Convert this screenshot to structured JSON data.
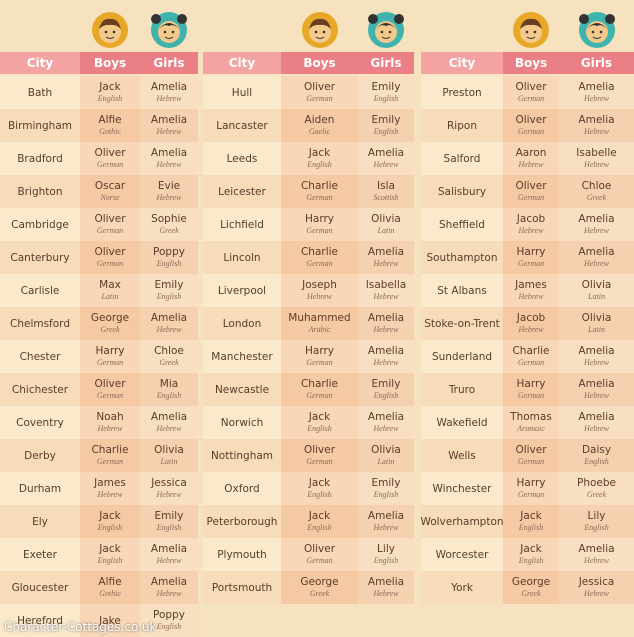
{
  "tables": [
    {
      "header": [
        "City",
        "Boys",
        "Girls"
      ],
      "rows": [
        {
          "city": "Bath",
          "boy": "Jack",
          "boy_origin": "English",
          "girl": "Amelia",
          "girl_origin": "Hebrew"
        },
        {
          "city": "Birmingham",
          "boy": "Alfie",
          "boy_origin": "Gothic",
          "girl": "Amelia",
          "girl_origin": "Hebrew"
        },
        {
          "city": "Bradford",
          "boy": "Oliver",
          "boy_origin": "German",
          "girl": "Amelia",
          "girl_origin": "Hebrew"
        },
        {
          "city": "Brighton",
          "boy": "Oscar",
          "boy_origin": "Norse",
          "girl": "Evie",
          "girl_origin": "Hebrew"
        },
        {
          "city": "Cambridge",
          "boy": "Oliver",
          "boy_origin": "German",
          "girl": "Sophie",
          "girl_origin": "Greek"
        },
        {
          "city": "Canterbury",
          "boy": "Oliver",
          "boy_origin": "German",
          "girl": "Poppy",
          "girl_origin": "English"
        },
        {
          "city": "Carlisle",
          "boy": "Max",
          "boy_origin": "Latin",
          "girl": "Emily",
          "girl_origin": "English"
        },
        {
          "city": "Chelmsford",
          "boy": "George",
          "boy_origin": "Greek",
          "girl": "Amelia",
          "girl_origin": "Hebrew"
        },
        {
          "city": "Chester",
          "boy": "Harry",
          "boy_origin": "German",
          "girl": "Chloe",
          "girl_origin": "Greek"
        },
        {
          "city": "Chichester",
          "boy": "Oliver",
          "boy_origin": "German",
          "girl": "Mia",
          "girl_origin": "English"
        },
        {
          "city": "Coventry",
          "boy": "Noah",
          "boy_origin": "Hebrew",
          "girl": "Amelia",
          "girl_origin": "Hebrew"
        },
        {
          "city": "Derby",
          "boy": "Charlie",
          "boy_origin": "German",
          "girl": "Olivia",
          "girl_origin": "Latin"
        },
        {
          "city": "Durham",
          "boy": "James",
          "boy_origin": "Hebrew",
          "girl": "Jessica",
          "girl_origin": "Hebrew"
        },
        {
          "city": "Ely",
          "boy": "Jack",
          "boy_origin": "English",
          "girl": "Emily",
          "girl_origin": "English"
        },
        {
          "city": "Exeter",
          "boy": "Jack",
          "boy_origin": "English",
          "girl": "Amelia",
          "girl_origin": "Hebrew"
        },
        {
          "city": "Gloucester",
          "boy": "Alfie",
          "boy_origin": "Gothic",
          "girl": "Amelia",
          "girl_origin": "Hebrew"
        },
        {
          "city": "Hereford",
          "boy": "Jake",
          "boy_origin": null,
          "girl": "Poppy",
          "girl_origin": "English"
        }
      ]
    },
    {
      "header": [
        "City",
        "Boys",
        "Girls"
      ],
      "rows": [
        {
          "city": "Hull",
          "boy": "Oliver",
          "boy_origin": "German",
          "girl": "Emily",
          "girl_origin": "English"
        },
        {
          "city": "Lancaster",
          "boy": "Aiden",
          "boy_origin": "Gaelic",
          "girl": "Emily",
          "girl_origin": "English"
        },
        {
          "city": "Leeds",
          "boy": "Jack",
          "boy_origin": "English",
          "girl": "Amelia",
          "girl_origin": "Hebrew"
        },
        {
          "city": "Leicester",
          "boy": "Charlie",
          "boy_origin": "German",
          "girl": "Isla",
          "girl_origin": "Scottish"
        },
        {
          "city": "Lichfield",
          "boy": "Harry",
          "boy_origin": "German",
          "girl": "Olivia",
          "girl_origin": "Latin"
        },
        {
          "city": "Lincoln",
          "boy": "Charlie",
          "boy_origin": "German",
          "girl": "Amelia",
          "girl_origin": "Hebrew"
        },
        {
          "city": "Liverpool",
          "boy": "Joseph",
          "boy_origin": "Hebrew",
          "girl": "Isabella",
          "girl_origin": "Hebrew"
        },
        {
          "city": "London",
          "boy": "Muhammed",
          "boy_origin": "Arabic",
          "girl": "Amelia",
          "girl_origin": "Hebrew"
        },
        {
          "city": "Manchester",
          "boy": "Harry",
          "boy_origin": "German",
          "girl": "Amelia",
          "girl_origin": "Hebrew"
        },
        {
          "city": "Newcastle",
          "boy": "Charlie",
          "boy_origin": "German",
          "girl": "Emily",
          "girl_origin": "English"
        },
        {
          "city": "Norwich",
          "boy": "Jack",
          "boy_origin": "English",
          "girl": "Amelia",
          "girl_origin": "Hebrew"
        },
        {
          "city": "Nottingham",
          "boy": "Oliver",
          "boy_origin": "German",
          "girl": "Olivia",
          "girl_origin": "Latin"
        },
        {
          "city": "Oxford",
          "boy": "Jack",
          "boy_origin": "English",
          "girl": "Emily",
          "girl_origin": "English"
        },
        {
          "city": "Peterborough",
          "boy": "Jack",
          "boy_origin": "English",
          "girl": "Amelia",
          "girl_origin": "Hebrew"
        },
        {
          "city": "Plymouth",
          "boy": "Oliver",
          "boy_origin": "German",
          "girl": "Lily",
          "girl_origin": "English"
        },
        {
          "city": "Portsmouth",
          "boy": "George",
          "boy_origin": "Greek",
          "girl": "Amelia",
          "girl_origin": "Hebrew"
        }
      ]
    },
    {
      "header": [
        "City",
        "Boys",
        "Girls"
      ],
      "rows": [
        {
          "city": "Preston",
          "boy": "Oliver",
          "boy_origin": "German",
          "girl": "Amelia",
          "girl_origin": "Hebrew"
        },
        {
          "city": "Ripon",
          "boy": "Oliver",
          "boy_origin": "German",
          "girl": "Amelia",
          "girl_origin": "Hebrew"
        },
        {
          "city": "Salford",
          "boy": "Aaron",
          "boy_origin": "Hebrew",
          "girl": "Isabelle",
          "girl_origin": "Hebrew"
        },
        {
          "city": "Salisbury",
          "boy": "Oliver",
          "boy_origin": "German",
          "girl": "Chloe",
          "girl_origin": "Greek"
        },
        {
          "city": "Sheffield",
          "boy": "Jacob",
          "boy_origin": "Hebrew",
          "girl": "Amelia",
          "girl_origin": "Hebrew"
        },
        {
          "city": "Southampton",
          "boy": "Harry",
          "boy_origin": "German",
          "girl": "Amelia",
          "girl_origin": "Hebrew"
        },
        {
          "city": "St Albans",
          "boy": "James",
          "boy_origin": "Hebrew",
          "girl": "Olivia",
          "girl_origin": "Latin"
        },
        {
          "city": "Stoke-on-Trent",
          "boy": "Jacob",
          "boy_origin": "Hebrew",
          "girl": "Olivia",
          "girl_origin": "Latin"
        },
        {
          "city": "Sunderland",
          "boy": "Charlie",
          "boy_origin": "German",
          "girl": "Amelia",
          "girl_origin": "Hebrew"
        },
        {
          "city": "Truro",
          "boy": "Harry",
          "boy_origin": "German",
          "girl": "Amelia",
          "girl_origin": "Hebrew"
        },
        {
          "city": "Wakefield",
          "boy": "Thomas",
          "boy_origin": "Aramaic",
          "girl": "Amelia",
          "girl_origin": "Hebrew"
        },
        {
          "city": "Wells",
          "boy": "Oliver",
          "boy_origin": "German",
          "girl": "Daisy",
          "girl_origin": "English"
        },
        {
          "city": "Winchester",
          "boy": "Harry",
          "boy_origin": "German",
          "girl": "Phoebe",
          "girl_origin": "Greek"
        },
        {
          "city": "Wolverhampton",
          "boy": "Jack",
          "boy_origin": "English",
          "girl": "Lily",
          "girl_origin": "English"
        },
        {
          "city": "Worcester",
          "boy": "Jack",
          "boy_origin": "English",
          "girl": "Amelia",
          "girl_origin": "Hebrew"
        },
        {
          "city": "York",
          "boy": "George",
          "boy_origin": "Greek",
          "girl": "Jessica",
          "girl_origin": "Hebrew"
        }
      ]
    }
  ],
  "watermark": "Character-Cottages.co.uk"
}
